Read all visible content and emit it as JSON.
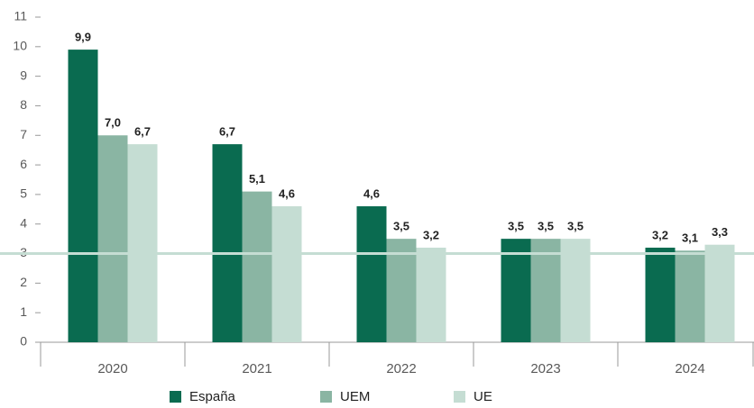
{
  "chart_data": {
    "type": "bar",
    "categories": [
      "2020",
      "2021",
      "2022",
      "2023",
      "2024"
    ],
    "series": [
      {
        "name": "España",
        "color": "#0a6b50",
        "values": [
          9.9,
          6.7,
          4.6,
          3.5,
          3.2
        ],
        "value_labels": [
          "9,9",
          "6,7",
          "4,6",
          "3,5",
          "3,2"
        ]
      },
      {
        "name": "UEM",
        "color": "#8ab5a3",
        "values": [
          7.0,
          5.1,
          3.5,
          3.5,
          3.1
        ],
        "value_labels": [
          "7,0",
          "5,1",
          "3,5",
          "3,5",
          "3,1"
        ]
      },
      {
        "name": "UE",
        "color": "#c5ddd3",
        "values": [
          6.7,
          4.6,
          3.2,
          3.5,
          3.3
        ],
        "value_labels": [
          "6,7",
          "4,6",
          "3,2",
          "3,5",
          "3,3"
        ]
      }
    ],
    "reference_line": {
      "value": 3,
      "color": "#c5ddd3"
    },
    "ylim": [
      0,
      11
    ],
    "yticks": [
      0,
      1,
      2,
      3,
      4,
      5,
      6,
      7,
      8,
      9,
      10,
      11
    ],
    "grid": false
  }
}
